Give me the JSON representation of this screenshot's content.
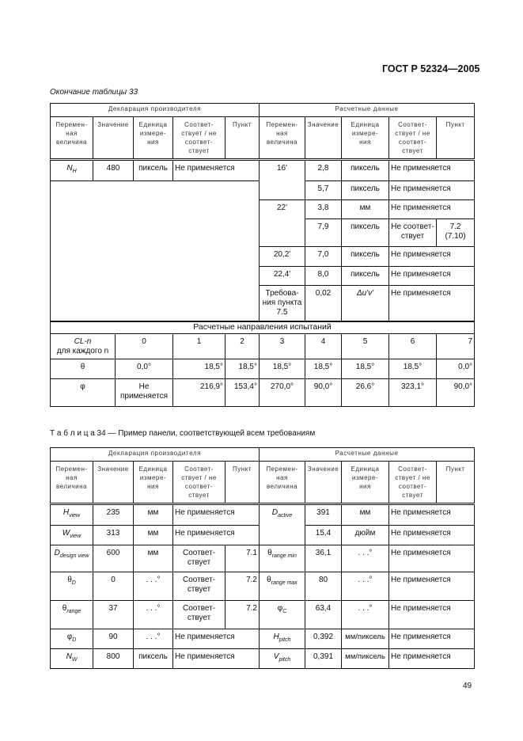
{
  "header": {
    "standard": "ГОСТ Р 52324—2005"
  },
  "headers": {
    "group_left": "Декларация производителя",
    "group_right": "Расчетные данные",
    "cols": [
      "Перемен-\nная\nвеличина",
      "Значение",
      "Единица\nизмере-\nния",
      "Соответ-\nствует / не\nсоответ-\nствует",
      "Пункт"
    ]
  },
  "t33": {
    "caption": "Окончание таблицы 33",
    "left": {
      "var_sym": "N",
      "var_sub": "H",
      "value": "480",
      "unit": "пиксель",
      "conf": "Не применяется"
    },
    "right": [
      {
        "var": "16'",
        "value": "2,8",
        "unit": "пиксель",
        "conf": "Не применяется"
      },
      {
        "value": "5,7",
        "unit": "пиксель",
        "conf": "Не применяется"
      },
      {
        "var": "22'",
        "value": "3,8",
        "unit": "мм",
        "conf": "Не применяется"
      },
      {
        "value": "7,9",
        "unit": "пиксель",
        "conf": "Не соответ-\nствует",
        "clause": "7.2\n(7.10)"
      },
      {
        "var": "20,2'",
        "value": "7,0",
        "unit": "пиксель",
        "conf": "Не применяется"
      },
      {
        "var": "22,4'",
        "value": "8,0",
        "unit": "пиксель",
        "conf": "Не применяется"
      },
      {
        "var": "Требова-\nния пункта\n7.5",
        "value": "0,02",
        "unit": "Δu'v'",
        "conf": "Не применяется"
      }
    ],
    "directions": {
      "title": "Расчетные направления испытаний",
      "cl_label": "CL-n",
      "cl_sub": "для каждого n",
      "n": [
        "0",
        "1",
        "2",
        "3",
        "4",
        "5",
        "6",
        "7"
      ],
      "theta_label": "θ",
      "theta": [
        "0,0°",
        "18,5°",
        "18,5°",
        "18,5°",
        "18,5°",
        "18,5°",
        "18,5°",
        "0,0°"
      ],
      "phi_label": "φ",
      "phi": [
        "Не\nприменяется",
        "216,9°",
        "153,4°",
        "270,0°",
        "90,0°",
        "26,6°",
        "323,1°",
        "90,0°"
      ]
    }
  },
  "t34": {
    "caption": "Т а б л и ц а  34 — Пример панели, соответствующей всем требованиям",
    "left": [
      {
        "sym": "H",
        "sub": "view",
        "value": "235",
        "unit": "мм",
        "conf": "Не применяется"
      },
      {
        "sym": "W",
        "sub": "view",
        "value": "313",
        "unit": "мм",
        "conf": "Не применяется"
      },
      {
        "sym": "D",
        "sub": "design view",
        "value": "600",
        "unit": "мм",
        "conf": "Соответ-\nствует",
        "clause": "7.1"
      },
      {
        "sym": "θ",
        "sub": "D",
        "value": "0",
        "unit": ". . .°",
        "conf": "Соответ-\nствует",
        "clause": "7.2"
      },
      {
        "sym": "θ",
        "sub": "range",
        "value": "37",
        "unit": ". . .°",
        "conf": "Соответ-\nствует",
        "clause": "7.2"
      },
      {
        "sym": "φ",
        "sub": "D",
        "value": "90",
        "unit": ". . .°",
        "conf": "Не применяется"
      },
      {
        "sym": "N",
        "sub": "W",
        "value": "800",
        "unit": "пиксель",
        "conf": "Не применяется"
      }
    ],
    "right": [
      {
        "sym": "D",
        "sub": "active",
        "value": "391",
        "unit": "мм",
        "conf": "Не применяется"
      },
      {
        "value": "15,4",
        "unit": "дюйм",
        "conf": "Не применяется"
      },
      {
        "sym": "θ",
        "sub": "range min",
        "value": "36,1",
        "unit": ". . .°",
        "conf": "Не применяется"
      },
      {
        "sym": "θ",
        "sub": "range max",
        "value": "80",
        "unit": ". . .°",
        "conf": "Не применяется"
      },
      {
        "sym": "φ",
        "sub": "C",
        "value": "63,4",
        "unit": ". . .°",
        "conf": "Не применяется"
      },
      {
        "sym": "H",
        "sub": "pitch",
        "value": "0,392",
        "unit": "мм/пиксель",
        "conf": "Не применяется"
      },
      {
        "sym": "V",
        "sub": "pitch",
        "value": "0,391",
        "unit": "мм/пиксель",
        "conf": "Не применяется"
      }
    ]
  },
  "footer": {
    "page": "49"
  }
}
